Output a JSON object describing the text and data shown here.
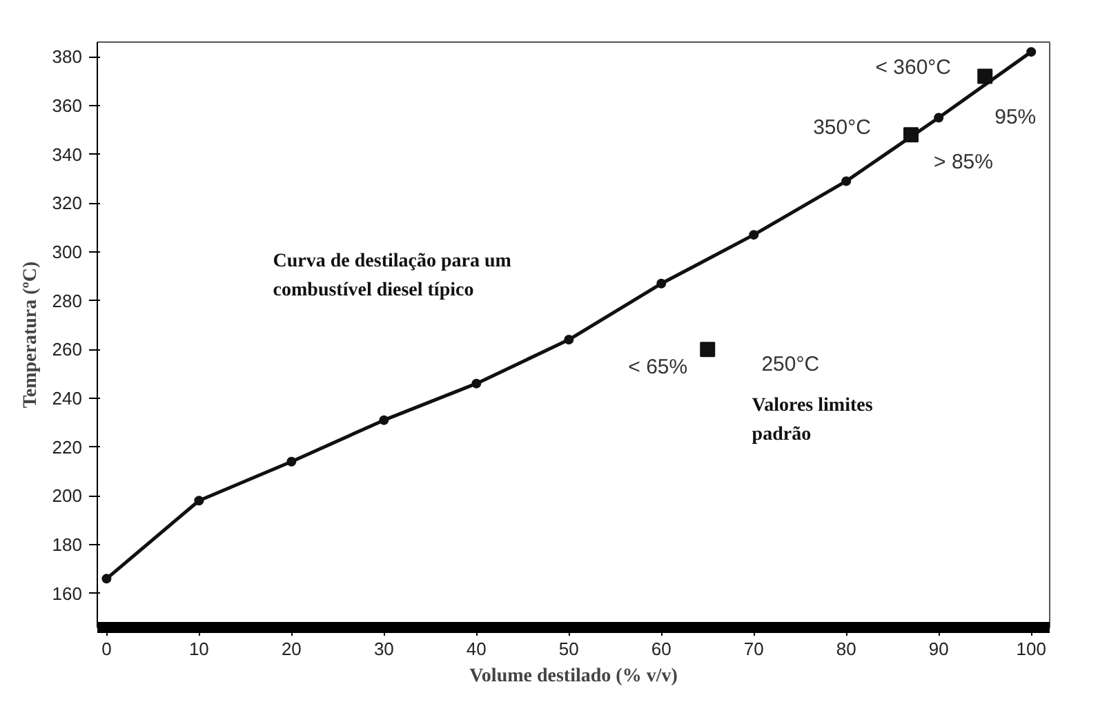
{
  "chart_data": {
    "type": "line",
    "xlabel": "Volume destilado (% v/v)",
    "ylabel": "Temperatura (ºC)",
    "xlim": [
      -1,
      102
    ],
    "ylim": [
      146,
      386
    ],
    "xticks": [
      0,
      10,
      20,
      30,
      40,
      50,
      60,
      70,
      80,
      90,
      100
    ],
    "yticks": [
      160,
      180,
      200,
      220,
      240,
      260,
      280,
      300,
      320,
      340,
      360,
      380
    ],
    "grid": false,
    "marker": "circle",
    "line_style": "solid",
    "series": [
      {
        "color": "#111111",
        "x": [
          0,
          10,
          20,
          30,
          40,
          50,
          60,
          70,
          80,
          90,
          100
        ],
        "values": [
          166,
          198,
          214,
          231,
          246,
          264,
          287,
          307,
          329,
          355,
          382
        ]
      },
      {
        "type": "scatter",
        "marker": "square",
        "color": "#111111",
        "x": [
          65,
          87,
          95
        ],
        "values": [
          260,
          348,
          372
        ]
      }
    ],
    "annotations": [
      "Curva de destilação para um\ncombustível diesel típico",
      "Valores limites\npadrão",
      {
        "text": "< 65%",
        "x": 65,
        "y": 260
      },
      {
        "text": "250°C",
        "x": 65,
        "y": 260
      },
      {
        "text": "350°C",
        "x": 87,
        "y": 348
      },
      {
        "text": "> 85%",
        "x": 87,
        "y": 348
      },
      {
        "text": "< 360°C",
        "x": 95,
        "y": 372
      },
      {
        "text": "95%",
        "x": 95,
        "y": 372
      }
    ]
  }
}
